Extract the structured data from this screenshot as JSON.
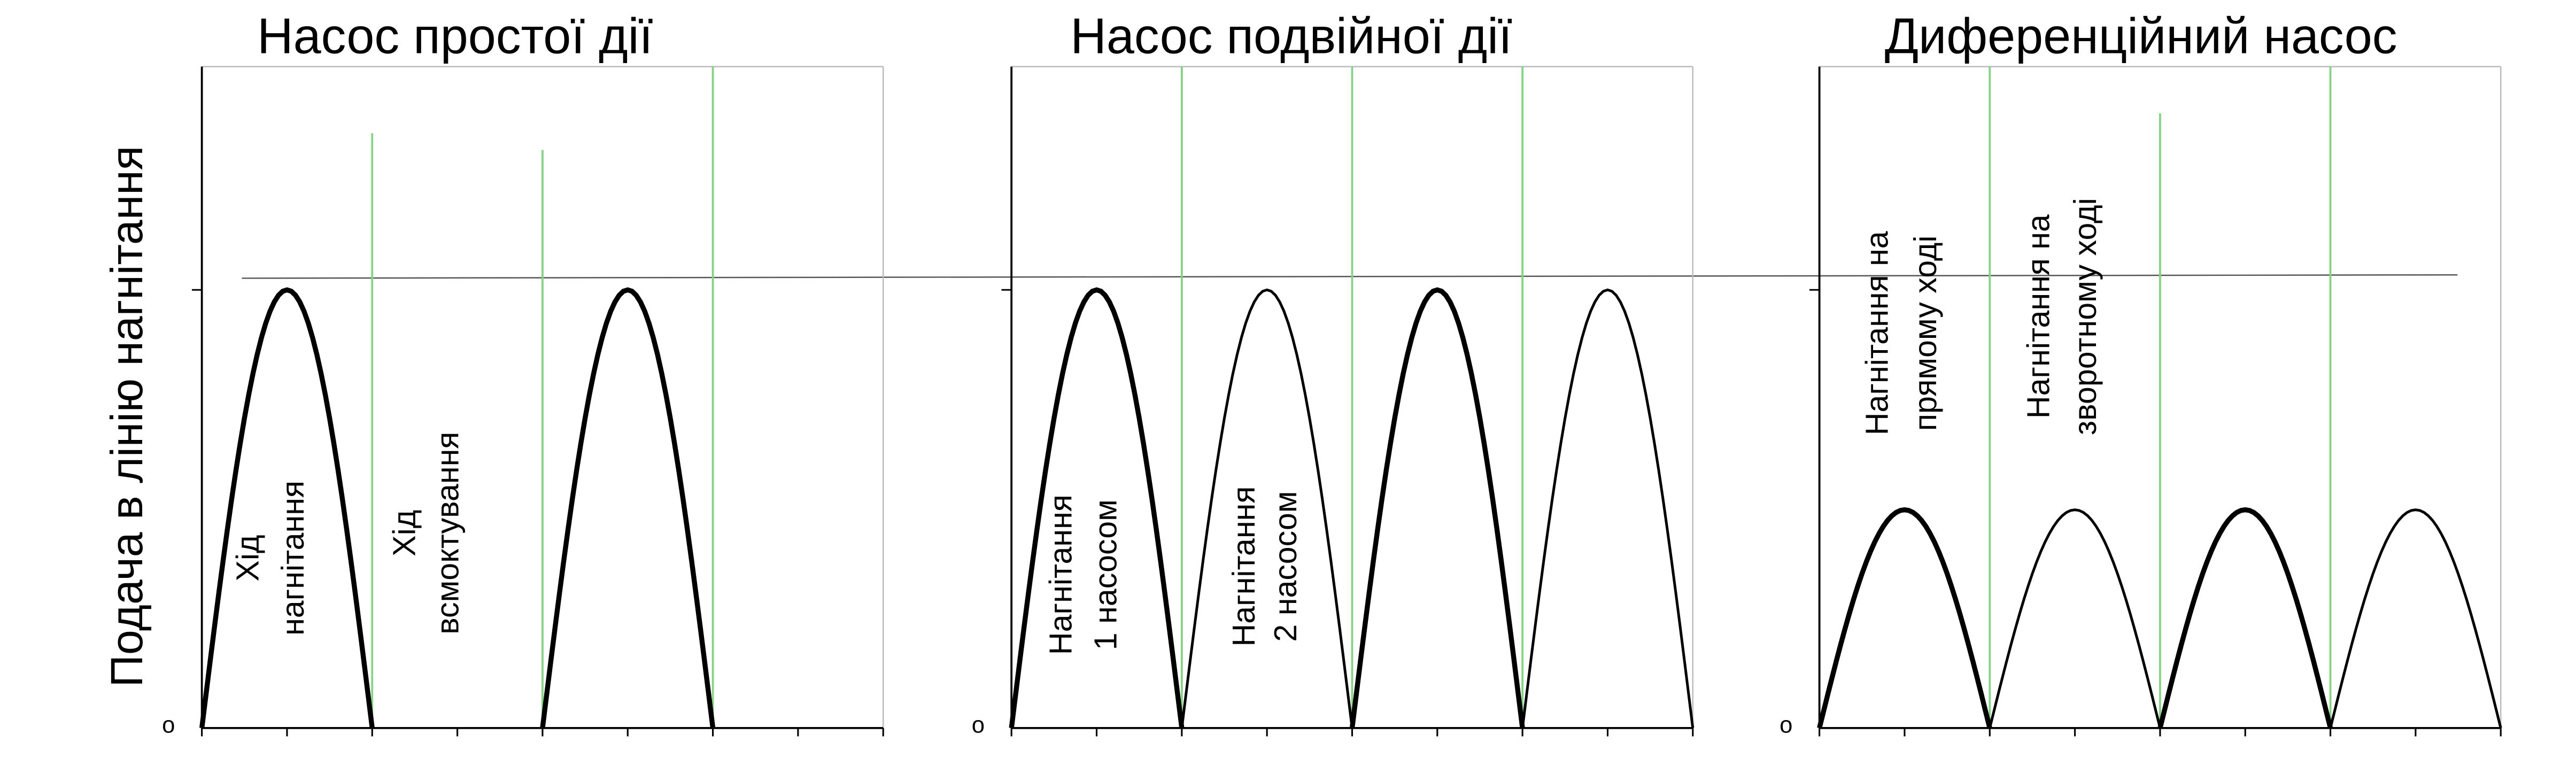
{
  "y_axis_label": "Подача в лінію нагнітання",
  "panels": [
    {
      "title": "Насос простої дії",
      "zero_label": "o",
      "labels": [
        [
          "Хід",
          "нагнітання"
        ],
        [
          "Хід",
          "всмоктування"
        ]
      ]
    },
    {
      "title": "Насос подвійної дії",
      "zero_label": "o",
      "labels": [
        [
          "Нагнітання",
          "1 насосом"
        ],
        [
          "Нагнітання",
          "2 насосом"
        ]
      ]
    },
    {
      "title": "Диференційний насос",
      "zero_label": "o",
      "labels": [
        [
          "Нагнітання на",
          "прямому ході"
        ],
        [
          "Нагнітання на",
          "зворотному ході"
        ]
      ]
    }
  ]
}
